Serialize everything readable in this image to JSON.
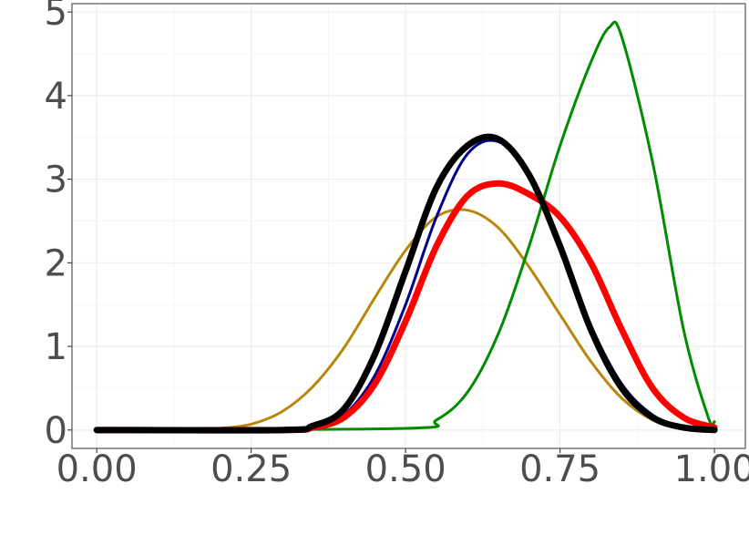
{
  "chart_data": {
    "type": "line",
    "title": "",
    "xlabel": "",
    "ylabel": "",
    "xlim": [
      -0.04,
      1.05
    ],
    "ylim": [
      -0.22,
      5.1
    ],
    "grid": true,
    "legend": "none",
    "x_ticks": [
      {
        "value": 0.0,
        "label": "0.00"
      },
      {
        "value": 0.25,
        "label": "0.25"
      },
      {
        "value": 0.5,
        "label": "0.50"
      },
      {
        "value": 0.75,
        "label": "0.75"
      },
      {
        "value": 1.0,
        "label": "1.00"
      }
    ],
    "y_ticks": [
      {
        "value": 0,
        "label": "0"
      },
      {
        "value": 1,
        "label": "1"
      },
      {
        "value": 2,
        "label": "2"
      },
      {
        "value": 3,
        "label": "3"
      },
      {
        "value": 4,
        "label": "4"
      },
      {
        "value": 5,
        "label": "5"
      }
    ],
    "series": [
      {
        "color": "#b8860b",
        "width": 3,
        "x": [
          0.0,
          0.1,
          0.15,
          0.2,
          0.25,
          0.3,
          0.35,
          0.4,
          0.45,
          0.5,
          0.55,
          0.6,
          0.65,
          0.7,
          0.75,
          0.8,
          0.85,
          0.9,
          0.95,
          1.0
        ],
        "y": [
          0.0,
          0.0,
          0.0,
          0.02,
          0.07,
          0.22,
          0.52,
          0.98,
          1.58,
          2.15,
          2.55,
          2.63,
          2.42,
          1.95,
          1.38,
          0.82,
          0.38,
          0.12,
          0.02,
          0.0
        ]
      },
      {
        "color": "#00008b",
        "width": 3,
        "x": [
          0.0,
          0.3,
          0.35,
          0.4,
          0.45,
          0.5,
          0.55,
          0.6,
          0.65,
          0.7,
          0.75,
          0.8,
          0.85,
          0.9,
          0.95,
          1.0
        ],
        "y": [
          0.0,
          0.0,
          0.04,
          0.18,
          0.65,
          1.5,
          2.55,
          3.3,
          3.45,
          3.05,
          2.2,
          1.25,
          0.55,
          0.18,
          0.04,
          0.0
        ]
      },
      {
        "color": "#008b00",
        "width": 3,
        "x": [
          0.0,
          0.5,
          0.55,
          0.6,
          0.65,
          0.7,
          0.75,
          0.8,
          0.83,
          0.85,
          0.9,
          0.95,
          0.99,
          1.0
        ],
        "y": [
          0.0,
          0.02,
          0.12,
          0.45,
          1.15,
          2.2,
          3.4,
          4.4,
          4.82,
          4.7,
          3.2,
          1.2,
          0.15,
          0.1
        ]
      },
      {
        "color": "#ff0000",
        "width": 7,
        "x": [
          0.0,
          0.3,
          0.35,
          0.4,
          0.45,
          0.5,
          0.55,
          0.6,
          0.65,
          0.7,
          0.75,
          0.8,
          0.85,
          0.9,
          0.95,
          1.0
        ],
        "y": [
          0.0,
          0.0,
          0.03,
          0.15,
          0.55,
          1.3,
          2.2,
          2.8,
          2.95,
          2.82,
          2.55,
          2.0,
          1.2,
          0.5,
          0.15,
          0.03
        ]
      },
      {
        "color": "#000000",
        "width": 7,
        "x": [
          0.0,
          0.3,
          0.35,
          0.4,
          0.45,
          0.5,
          0.55,
          0.6,
          0.65,
          0.7,
          0.75,
          0.8,
          0.85,
          0.9,
          0.95,
          1.0
        ],
        "y": [
          0.0,
          0.0,
          0.05,
          0.25,
          0.9,
          1.9,
          2.9,
          3.4,
          3.48,
          3.05,
          2.2,
          1.2,
          0.5,
          0.15,
          0.03,
          0.0
        ]
      }
    ]
  }
}
